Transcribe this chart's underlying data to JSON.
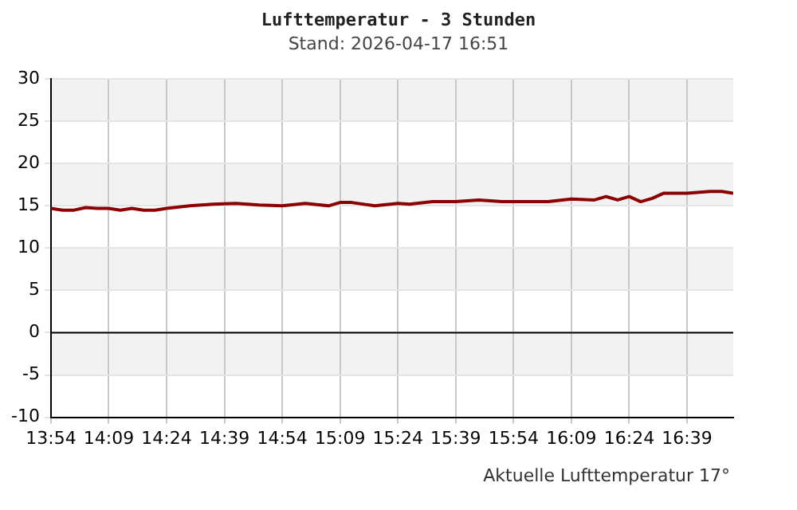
{
  "chart_data": {
    "type": "line",
    "title": "Lufttemperatur - 3 Stunden",
    "subtitle": "Stand: 2026-04-17 16:51",
    "annotations": [
      "Aktuelle Lufttemperatur 17°"
    ],
    "x": [
      13.9,
      13.95,
      14.0,
      14.05,
      14.1,
      14.15,
      14.2,
      14.25,
      14.3,
      14.35,
      14.4,
      14.5,
      14.6,
      14.7,
      14.8,
      14.9,
      15.0,
      15.1,
      15.15,
      15.2,
      15.3,
      15.4,
      15.45,
      15.55,
      15.65,
      15.75,
      15.85,
      15.95,
      16.05,
      16.15,
      16.25,
      16.3,
      16.35,
      16.4,
      16.45,
      16.5,
      16.55,
      16.65,
      16.75,
      16.8,
      16.85
    ],
    "series": [
      {
        "color": "#8b0000",
        "values": [
          14.7,
          14.5,
          14.5,
          14.8,
          14.7,
          14.7,
          14.5,
          14.7,
          14.5,
          14.5,
          14.7,
          15.0,
          15.2,
          15.3,
          15.1,
          15.0,
          15.3,
          15.0,
          15.4,
          15.4,
          15.0,
          15.3,
          15.2,
          15.5,
          15.5,
          15.7,
          15.5,
          15.5,
          15.5,
          15.8,
          15.7,
          16.1,
          15.7,
          16.1,
          15.5,
          15.9,
          16.5,
          16.5,
          16.7,
          16.7,
          16.5
        ]
      }
    ],
    "xlim": [
      13.9,
      16.85
    ],
    "xticks": [
      {
        "value": 13.9,
        "label": "13:54"
      },
      {
        "value": 14.15,
        "label": "14:09"
      },
      {
        "value": 14.4,
        "label": "14:24"
      },
      {
        "value": 14.65,
        "label": "14:39"
      },
      {
        "value": 14.9,
        "label": "14:54"
      },
      {
        "value": 15.15,
        "label": "15:09"
      },
      {
        "value": 15.4,
        "label": "15:24"
      },
      {
        "value": 15.65,
        "label": "15:39"
      },
      {
        "value": 15.9,
        "label": "15:54"
      },
      {
        "value": 16.15,
        "label": "16:09"
      },
      {
        "value": 16.4,
        "label": "16:24"
      },
      {
        "value": 16.65,
        "label": "16:39"
      }
    ],
    "ylim": [
      -10,
      30
    ],
    "yticks": [
      -10,
      -5,
      0,
      5,
      10,
      15,
      20,
      25,
      30
    ],
    "grid": true,
    "marker": "none",
    "line_style": "solid",
    "legend": false,
    "ref_lines": [
      {
        "axis": "y",
        "value": 0,
        "color": "#000000"
      }
    ],
    "bands": [
      {
        "axis": "y",
        "from": 25,
        "to": 30,
        "color": "#f2f2f2"
      },
      {
        "axis": "y",
        "from": 15,
        "to": 20,
        "color": "#f2f2f2"
      },
      {
        "axis": "y",
        "from": 5,
        "to": 10,
        "color": "#f2f2f2"
      },
      {
        "axis": "y",
        "from": -5,
        "to": 0,
        "color": "#f2f2f2"
      }
    ]
  }
}
